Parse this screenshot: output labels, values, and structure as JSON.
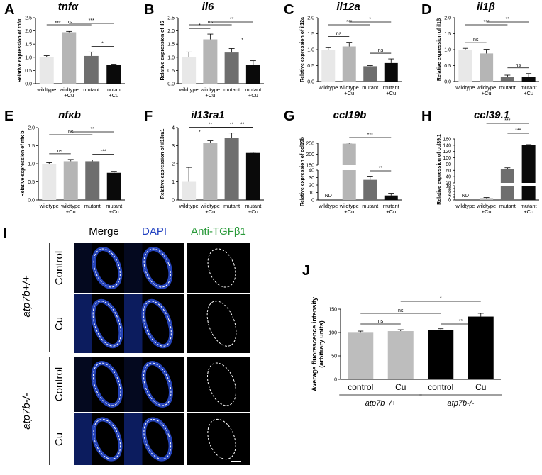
{
  "figure": {
    "groups": [
      "wildtype",
      "wildtype\n+Cu",
      "mutant",
      "mutant\n+Cu"
    ],
    "bar_colors": [
      "#e8e8e8",
      "#b5b5b5",
      "#6e6e6e",
      "#0a0a0a"
    ],
    "micro_columns": [
      "Merge",
      "DAPI",
      "Anti-TGFβ1"
    ],
    "micro_column_colors": [
      "#000000",
      "#1f3fc0",
      "#2a9a3a"
    ],
    "micro_rows": [
      "Control",
      "Cu",
      "Control",
      "Cu"
    ],
    "genotypes": [
      "atp7b+/+",
      "atp7b-/-"
    ]
  },
  "chart_data": [
    {
      "panel": "A",
      "type": "bar",
      "title": "tnfα",
      "ylabel": "Relative expression of tnfα",
      "categories": [
        "wildtype",
        "wildtype\n+Cu",
        "mutant",
        "mutant\n+Cu"
      ],
      "values": [
        1.0,
        1.95,
        1.05,
        0.7
      ],
      "errors": [
        0.06,
        0.03,
        0.15,
        0.04
      ],
      "ylim": [
        0,
        2.5
      ],
      "yticks": [
        "0.0",
        "0.5",
        "1.0",
        "1.5",
        "2.0",
        "2.5"
      ],
      "annotations": [
        {
          "a": 0,
          "b": 1,
          "label": "***"
        },
        {
          "a": 0,
          "b": 2,
          "label": "ns"
        },
        {
          "a": 1,
          "b": 3,
          "label": "***"
        },
        {
          "a": 2,
          "b": 3,
          "label": "*"
        }
      ]
    },
    {
      "panel": "B",
      "type": "bar",
      "title": "il6",
      "ylabel": "Relative expression of il6",
      "categories": [
        "wildtype",
        "wildtype\n+Cu",
        "mutant",
        "mutant\n+Cu"
      ],
      "values": [
        1.0,
        1.68,
        1.18,
        0.7
      ],
      "errors": [
        0.2,
        0.2,
        0.15,
        0.17
      ],
      "ylim": [
        0,
        2.5
      ],
      "yticks": [
        "0.0",
        "0.5",
        "1.0",
        "1.5",
        "2.0",
        "2.5"
      ],
      "annotations": [
        {
          "a": 0,
          "b": 1,
          "label": "*"
        },
        {
          "a": 0,
          "b": 2,
          "label": "ns"
        },
        {
          "a": 2,
          "b": 3,
          "label": "*"
        },
        {
          "a": 1,
          "b": 3,
          "label": "**"
        }
      ]
    },
    {
      "panel": "C",
      "type": "bar",
      "title": "il12a",
      "ylabel": "Relative expression of il12a",
      "categories": [
        "wildtype",
        "wildtype\n+Cu",
        "mutant",
        "mutant\n+Cu"
      ],
      "values": [
        1.0,
        1.1,
        0.48,
        0.58
      ],
      "errors": [
        0.06,
        0.13,
        0.02,
        0.13
      ],
      "ylim": [
        0,
        2.0
      ],
      "yticks": [
        "0.0",
        "0.5",
        "1.0",
        "1.5",
        "2.0"
      ],
      "annotations": [
        {
          "a": 0,
          "b": 1,
          "label": "ns"
        },
        {
          "a": 0,
          "b": 2,
          "label": "***"
        },
        {
          "a": 2,
          "b": 3,
          "label": "ns"
        },
        {
          "a": 1,
          "b": 3,
          "label": "*"
        }
      ]
    },
    {
      "panel": "D",
      "type": "bar",
      "title": "il1β",
      "ylabel": "Relative expression of il1β",
      "categories": [
        "wildtype",
        "wildtype\n+Cu",
        "mutant",
        "mutant\n+Cu"
      ],
      "values": [
        1.0,
        0.88,
        0.15,
        0.15
      ],
      "errors": [
        0.04,
        0.13,
        0.05,
        0.1
      ],
      "ylim": [
        0,
        2.0
      ],
      "yticks": [
        "0.0",
        "0.5",
        "1.0",
        "1.5",
        "2.0"
      ],
      "annotations": [
        {
          "a": 0,
          "b": 1,
          "label": "ns"
        },
        {
          "a": 0,
          "b": 2,
          "label": "***"
        },
        {
          "a": 2,
          "b": 3,
          "label": "ns"
        },
        {
          "a": 1,
          "b": 3,
          "label": "**"
        }
      ]
    },
    {
      "panel": "E",
      "type": "bar",
      "title": "nfκb",
      "ylabel": "Relative expression of nfκ b",
      "categories": [
        "wildtype",
        "wildtype\n+Cu",
        "mutant",
        "mutant\n+Cu"
      ],
      "values": [
        1.0,
        1.07,
        1.07,
        0.75
      ],
      "errors": [
        0.03,
        0.05,
        0.04,
        0.04
      ],
      "ylim": [
        0,
        2.0
      ],
      "yticks": [
        "0.0",
        "0.5",
        "1.0",
        "1.5",
        "2.0"
      ],
      "annotations": [
        {
          "a": 0,
          "b": 1,
          "label": "ns"
        },
        {
          "a": 0,
          "b": 2,
          "label": "ns"
        },
        {
          "a": 2,
          "b": 3,
          "label": "***"
        },
        {
          "a": 1,
          "b": 3,
          "label": "**"
        }
      ]
    },
    {
      "panel": "F",
      "type": "bar",
      "title": "il13ra1",
      "ylabel": "Relative expression of il13ra1",
      "categories": [
        "wildtype",
        "wildtype\n+Cu",
        "mutant",
        "mutant\n+Cu"
      ],
      "values": [
        1.0,
        3.15,
        3.45,
        2.6
      ],
      "errors": [
        0.8,
        0.12,
        0.25,
        0.04
      ],
      "ylim": [
        0,
        4
      ],
      "yticks": [
        "0",
        "1",
        "2",
        "3",
        "4"
      ],
      "annotations": [
        {
          "a": 0,
          "b": 1,
          "label": "*"
        },
        {
          "a": 0,
          "b": 2,
          "label": "**"
        },
        {
          "a": 2,
          "b": 3,
          "label": "**"
        },
        {
          "a": 1,
          "b": 3,
          "label": "**"
        }
      ]
    },
    {
      "panel": "G",
      "type": "bar",
      "title": "ccl19b",
      "ylabel": "Relative expression of ccl19b",
      "categories": [
        "wildtype",
        "wildtype\n+Cu",
        "mutant",
        "mutant\n+Cu"
      ],
      "values": [
        0,
        248,
        27,
        6
      ],
      "errors": [
        0,
        3,
        5,
        3
      ],
      "value_labels": [
        "ND",
        "",
        "",
        ""
      ],
      "axis_break": {
        "lower": [
          0,
          40
        ],
        "upper": [
          150,
          250
        ]
      },
      "yticks_lower": [
        "0",
        "10",
        "20",
        "30",
        "40"
      ],
      "yticks_upper": [
        "150",
        "200",
        "250"
      ],
      "annotations": [
        {
          "a": 1,
          "b": 3,
          "label": "***"
        },
        {
          "a": 2,
          "b": 3,
          "label": "**"
        }
      ]
    },
    {
      "panel": "H",
      "type": "bar",
      "title": "ccl39.1",
      "ylabel": "Relative expression of ccl39.1",
      "categories": [
        "wildtype",
        "wildtype\n+Cu",
        "mutant",
        "mutant\n+Cu"
      ],
      "values": [
        0,
        1.3,
        65,
        140
      ],
      "errors": [
        0,
        0.4,
        3,
        2
      ],
      "value_labels": [
        "ND",
        "",
        "",
        ""
      ],
      "axis_break": {
        "lower": [
          0,
          10
        ],
        "upper": [
          20,
          160
        ]
      },
      "yticks_lower": [
        "0",
        "2",
        "4",
        "6",
        "8",
        "10"
      ],
      "yticks_upper": [
        "20",
        "40",
        "60",
        "80",
        "100",
        "120",
        "140",
        "160"
      ],
      "annotations": [
        {
          "a": 1,
          "b": 3,
          "label": "***"
        },
        {
          "a": 2,
          "b": 3,
          "label": "***"
        }
      ]
    },
    {
      "panel": "J",
      "type": "bar",
      "ylabel": "Average fluorescence intensity\n(arbitrary units)",
      "categories": [
        "control",
        "Cu",
        "control",
        "Cu"
      ],
      "group_labels": [
        "atp7b+/+",
        "atp7b-/-"
      ],
      "values": [
        101,
        103,
        105,
        134
      ],
      "errors": [
        2,
        3,
        3,
        7
      ],
      "colors": [
        "#bdbdbd",
        "#bdbdbd",
        "#000000",
        "#000000"
      ],
      "ylim": [
        0,
        150
      ],
      "yticks": [
        "0",
        "50",
        "100",
        "150"
      ],
      "annotations": [
        {
          "a": 0,
          "b": 1,
          "label": "ns"
        },
        {
          "a": 0,
          "b": 2,
          "label": "ns"
        },
        {
          "a": 2,
          "b": 3,
          "label": "**"
        },
        {
          "a": 1,
          "b": 3,
          "label": "*"
        }
      ]
    }
  ]
}
